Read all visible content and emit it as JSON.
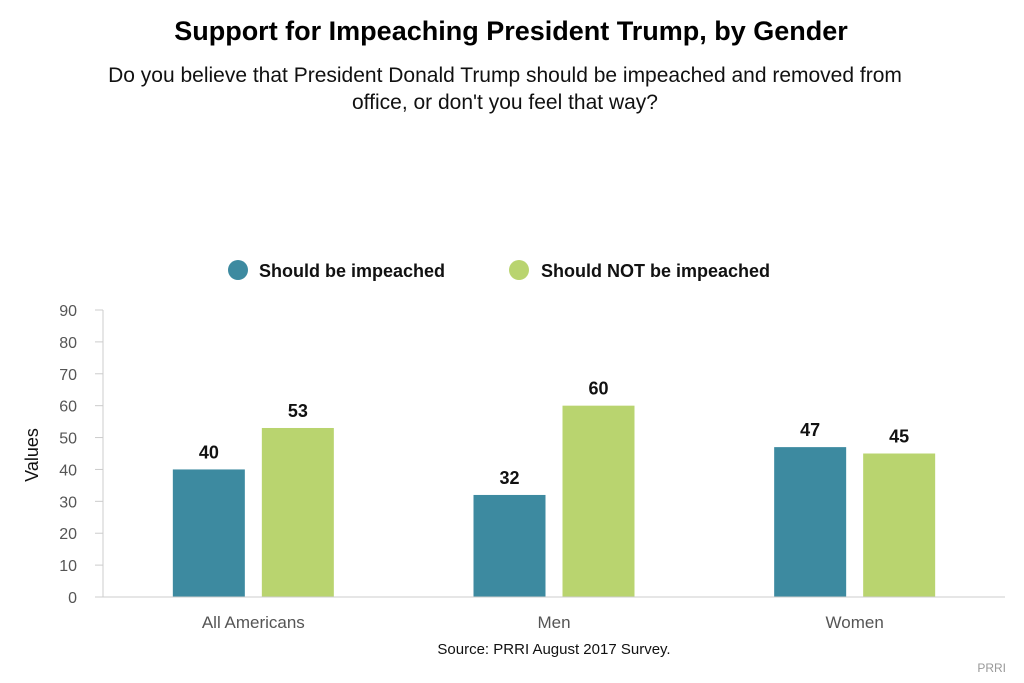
{
  "chart_data": {
    "type": "bar",
    "title": "Support for Impeaching President Trump, by Gender",
    "subtitle_lines": [
      "Do you believe that President Donald Trump should be impeached and removed from",
      "office, or don't you feel that way?"
    ],
    "categories": [
      "All Americans",
      "Men",
      "Women"
    ],
    "series": [
      {
        "name": "Should be impeached",
        "color": "#3d8aa0",
        "values": [
          40,
          32,
          47
        ]
      },
      {
        "name": "Should NOT be impeached",
        "color": "#b9d46f",
        "values": [
          53,
          60,
          45
        ]
      }
    ],
    "ylabel": "Values",
    "ylim": [
      0,
      90
    ],
    "yticks": [
      "0",
      "10",
      "20",
      "30",
      "40",
      "50",
      "60",
      "70",
      "80",
      "90"
    ],
    "legend_position": "top-center",
    "grid": false,
    "source": "Source: PRRI August 2017 Survey.",
    "credit": "PRRI"
  }
}
